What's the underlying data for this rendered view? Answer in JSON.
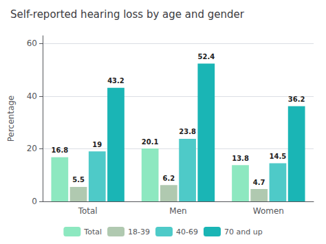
{
  "chart_data": {
    "type": "bar",
    "title": "Self-reported hearing loss by age and gender",
    "ylabel": "Percentage",
    "categories": [
      "Total",
      "Men",
      "Women"
    ],
    "series": [
      {
        "name": "Total",
        "color": "#8de8c0",
        "values": [
          16.8,
          20.1,
          13.8
        ]
      },
      {
        "name": "18-39",
        "color": "#b0c9b0",
        "values": [
          5.5,
          6.2,
          4.7
        ]
      },
      {
        "name": "40-69",
        "color": "#4ecac8",
        "values": [
          19.0,
          23.8,
          14.5
        ]
      },
      {
        "name": "70 and up",
        "color": "#1ab5b5",
        "values": [
          43.2,
          52.4,
          36.2
        ]
      }
    ],
    "ylim": [
      0,
      63
    ],
    "yticks": [
      0,
      20,
      40,
      60
    ],
    "grid": true,
    "legend": "bottom",
    "data_labels": true
  }
}
